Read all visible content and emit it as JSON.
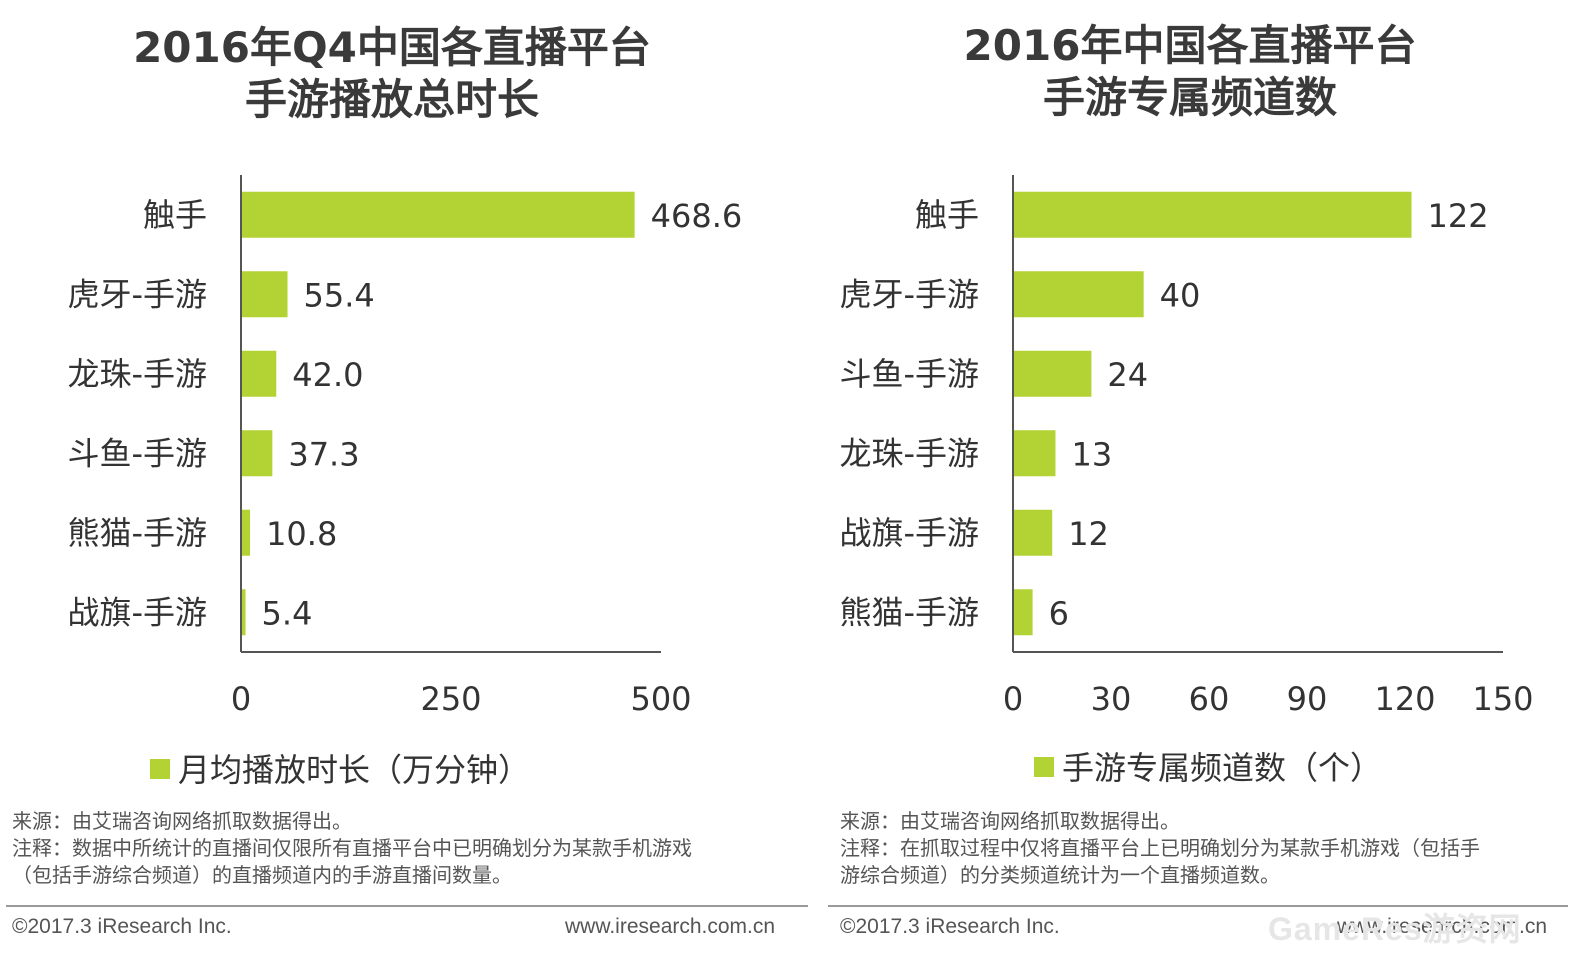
{
  "colors": {
    "bar": "#b3d334",
    "axis": "#555555",
    "text": "#333333"
  },
  "watermark": "GameRes游资网",
  "chart_data": [
    {
      "type": "bar",
      "orientation": "horizontal",
      "title_line1": "2016年Q4中国各直播平台",
      "title_line2": "手游播放总时长",
      "categories": [
        "触手",
        "虎牙-手游",
        "龙珠-手游",
        "斗鱼-手游",
        "熊猫-手游",
        "战旗-手游"
      ],
      "values": [
        468.6,
        55.4,
        42.0,
        37.3,
        10.8,
        5.4
      ],
      "value_labels": [
        "468.6",
        "55.4",
        "42.0",
        "37.3",
        "10.8",
        "5.4"
      ],
      "xlim": [
        0,
        500
      ],
      "xticks": [
        "0",
        "250",
        "500"
      ],
      "legend": "月均播放时长（万分钟）",
      "grid": false,
      "notes": [
        "来源：由艾瑞咨询网络抓取数据得出。",
        "注释：数据中所统计的直播间仅限所有直播平台中已明确划分为某款手机游戏",
        "（包括手游综合频道）的直播频道内的手游直播间数量。"
      ],
      "copyright": "©2017.3 iResearch Inc.",
      "site": "www.iresearch.com.cn"
    },
    {
      "type": "bar",
      "orientation": "horizontal",
      "title_line1": "2016年中国各直播平台",
      "title_line2": "手游专属频道数",
      "categories": [
        "触手",
        "虎牙-手游",
        "斗鱼-手游",
        "龙珠-手游",
        "战旗-手游",
        "熊猫-手游"
      ],
      "values": [
        122,
        40,
        24,
        13,
        12,
        6
      ],
      "value_labels": [
        "122",
        "40",
        "24",
        "13",
        "12",
        "6"
      ],
      "xlim": [
        0,
        150
      ],
      "xticks": [
        "0",
        "30",
        "60",
        "90",
        "120",
        "150"
      ],
      "legend": "手游专属频道数（个）",
      "grid": false,
      "notes": [
        "来源：由艾瑞咨询网络抓取数据得出。",
        "注释：在抓取过程中仅将直播平台上已明确划分为某款手机游戏（包括手",
        "游综合频道）的分类频道统计为一个直播频道数。"
      ],
      "copyright": "©2017.3 iResearch Inc.",
      "site": "www.iresearch.com.cn"
    }
  ]
}
